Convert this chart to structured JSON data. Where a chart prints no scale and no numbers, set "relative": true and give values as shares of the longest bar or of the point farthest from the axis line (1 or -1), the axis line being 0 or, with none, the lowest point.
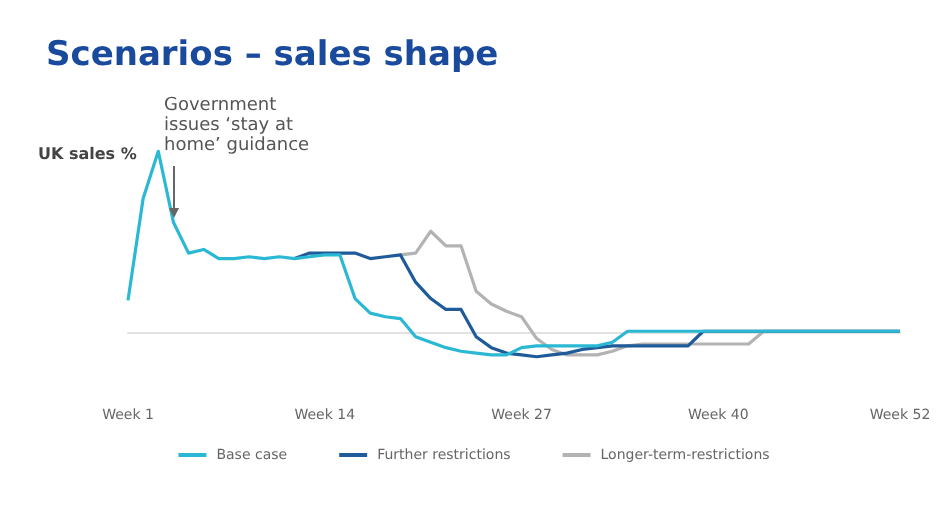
{
  "chart_data": {
    "type": "line",
    "title": "Scenarios – sales shape",
    "ylabel": "UK sales %",
    "relative": true,
    "categories": [
      "Week 1",
      null,
      null,
      null,
      null,
      null,
      null,
      null,
      null,
      null,
      null,
      null,
      null,
      "Week 14",
      null,
      null,
      null,
      null,
      null,
      null,
      null,
      null,
      null,
      null,
      null,
      null,
      "Week 27",
      null,
      null,
      null,
      null,
      null,
      null,
      null,
      null,
      null,
      null,
      null,
      null,
      "Week 40",
      null,
      null,
      null,
      null,
      null,
      null,
      null,
      null,
      null,
      null,
      null,
      "Week 52"
    ],
    "series": [
      {
        "name": "Longer-term-restrictions",
        "color": "#b3b3b3",
        "values": [
          null,
          null,
          null,
          null,
          null,
          null,
          null,
          null,
          null,
          null,
          null,
          null,
          null,
          null,
          null,
          null,
          null,
          null,
          0.43,
          0.44,
          0.56,
          0.48,
          0.48,
          0.23,
          0.16,
          0.12,
          0.09,
          -0.03,
          -0.09,
          -0.12,
          -0.12,
          -0.12,
          -0.1,
          -0.07,
          -0.06,
          -0.06,
          -0.06,
          -0.06,
          -0.06,
          -0.06,
          -0.06,
          -0.06,
          0.01,
          0.01,
          0.01,
          0.01,
          0.01,
          0.01,
          0.01,
          0.01,
          0.01,
          0.01
        ]
      },
      {
        "name": "Further restrictions",
        "color": "#1f5a99",
        "values": [
          null,
          null,
          null,
          null,
          null,
          null,
          null,
          null,
          null,
          null,
          null,
          0.41,
          0.44,
          0.44,
          0.44,
          0.44,
          0.41,
          0.42,
          0.43,
          0.28,
          0.19,
          0.13,
          0.13,
          -0.02,
          -0.08,
          -0.11,
          -0.12,
          -0.13,
          -0.12,
          -0.11,
          -0.09,
          -0.08,
          -0.07,
          -0.07,
          -0.07,
          -0.07,
          -0.07,
          -0.07,
          0.01,
          0.01,
          0.01,
          0.01,
          0.01,
          0.01,
          0.01,
          0.01,
          0.01,
          0.01,
          0.01,
          0.01,
          0.01,
          0.01
        ]
      },
      {
        "name": "Base case",
        "color": "#2bb8d4",
        "values": [
          0.18,
          0.74,
          1,
          0.61,
          0.44,
          0.46,
          0.41,
          0.41,
          0.42,
          0.41,
          0.42,
          0.41,
          0.42,
          0.43,
          0.43,
          0.19,
          0.11,
          0.09,
          0.08,
          -0.02,
          -0.05,
          -0.08,
          -0.1,
          -0.11,
          -0.12,
          -0.12,
          -0.08,
          -0.07,
          -0.07,
          -0.07,
          -0.07,
          -0.07,
          -0.05,
          0.01,
          0.01,
          0.01,
          0.01,
          0.01,
          0.01,
          0.01,
          0.01,
          0.01,
          0.01,
          0.01,
          0.01,
          0.01,
          0.01,
          0.01,
          0.01,
          0.01,
          0.01,
          0.01
        ]
      }
    ],
    "legend": "bottom",
    "marker": "none",
    "line_style": "solid",
    "grid": false,
    "annotations": [
      "Government issues ‘stay at home’ guidance"
    ]
  }
}
